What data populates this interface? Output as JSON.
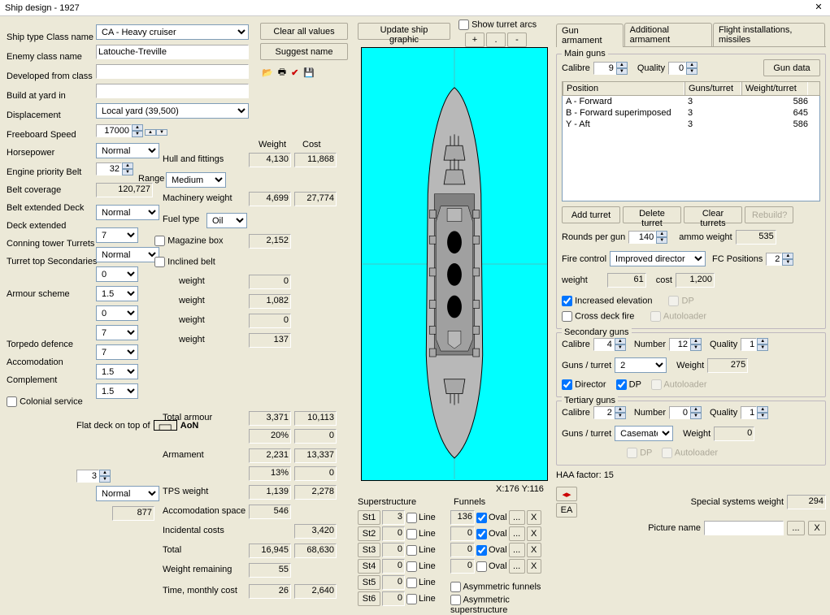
{
  "window": {
    "title": "Ship design - 1927"
  },
  "left": {
    "ship_type_label": "Ship type",
    "ship_type": "CA - Heavy cruiser",
    "class_name_label": "Class name",
    "class_name": "Latouche-Treville",
    "enemy_class_label": "Enemy class name",
    "enemy_class": "",
    "developed_label": "Developed from class",
    "developed": "",
    "build_yard_label": "Build at yard in",
    "build_yard": "Local yard (39,500)",
    "displacement_label": "Displacement",
    "displacement": "17000",
    "freeboard_label": "Freeboard",
    "freeboard": "Normal",
    "speed_label": "Speed",
    "speed": "32",
    "horsepower_label": "Horsepower",
    "horsepower": "120,727",
    "engine_priority_label": "Engine priority",
    "engine_priority": "Normal",
    "belt_label": "Belt",
    "belt": "7",
    "belt_cov_label": "Belt coverage",
    "belt_cov": "Normal",
    "belt_ext_label": "Belt extended",
    "belt_ext": "0",
    "deck_label": "Deck",
    "deck": "1.5",
    "deck_ext_label": "Deck extended",
    "deck_ext": "0",
    "conning_label": "Conning tower",
    "conning": "7",
    "turrets_label": "Turrets",
    "turrets": "7",
    "turret_top_label": "Turret top",
    "turret_top": "1.5",
    "secondaries_label": "Secondaries",
    "secondaries": "1.5",
    "armour_scheme_label": "Armour scheme",
    "armour_scheme": "Flat deck on top of",
    "aon_label": "AoN",
    "torpedo_def_label": "Torpedo defence",
    "torpedo_def": "3",
    "accom_label": "Accomodation",
    "accom": "Normal",
    "complement_label": "Complement",
    "complement": "877",
    "colonial_label": "Colonial service"
  },
  "mid": {
    "clear_btn": "Clear all values",
    "suggest_btn": "Suggest name",
    "weight_hdr": "Weight",
    "cost_hdr": "Cost",
    "hull_label": "Hull and fittings",
    "hull_weight": "4,130",
    "hull_cost": "11,868",
    "range_label": "Range",
    "range": "Medium",
    "machinery_label": "Machinery weight",
    "machinery_weight": "4,699",
    "machinery_cost": "27,774",
    "fuel_label": "Fuel type",
    "fuel": "Oil",
    "magbox_label": "Magazine box",
    "magbox_weight": "2,152",
    "inclined_label": "Inclined belt",
    "w1_label": "weight",
    "w1": "0",
    "w2_label": "weight",
    "w2": "1,082",
    "w3_label": "weight",
    "w3": "0",
    "w4_label": "weight",
    "w4": "137",
    "total_armour_label": "Total armour",
    "total_armour_w": "3,371",
    "total_armour_c": "10,113",
    "armament_label": "Armament",
    "armscheme_pct": "20%",
    "armscheme_cost": "0",
    "armament_w": "2,231",
    "armament_c": "13,337",
    "thirteen_pct": "13%",
    "thirteen_cost": "0",
    "tps_label": "TPS weight",
    "tps_w": "1,139",
    "tps_c": "2,278",
    "accspace_label": "Accomodation space",
    "accspace_w": "546",
    "incidental_label": "Incidental costs",
    "incidental_c": "3,420",
    "total_label": "Total",
    "total_w": "16,945",
    "total_c": "68,630",
    "rem_label": "Weight remaining",
    "rem_w": "55",
    "time_label": "Time, monthly cost",
    "time_w": "26",
    "time_c": "2,640"
  },
  "center": {
    "update_btn": "Update ship graphic",
    "show_turret_label": "Show turret arcs",
    "plus": "+",
    "dot": ".",
    "minus": "-",
    "coord": "X:176 Y:116",
    "super_label": "Superstructure",
    "funnels_label": "Funnels",
    "st_labels": [
      "St1",
      "St2",
      "St3",
      "St4",
      "St5",
      "St6"
    ],
    "st_vals": [
      "3",
      "0",
      "0",
      "0",
      "0",
      "0"
    ],
    "line_label": "Line",
    "fn_vals": [
      "136",
      "0",
      "0",
      "0"
    ],
    "oval_label": "Oval",
    "dots_btn": "...",
    "x_btn": "X",
    "asym_funnels": "Asymmetric funnels",
    "asym_super": "Asymmetric superstructure"
  },
  "right": {
    "tab1": "Gun armament",
    "tab2": "Additional armament",
    "tab3": "Flight installations, missiles",
    "main_guns_label": "Main guns",
    "calibre_label": "Calibre",
    "calibre": "9",
    "quality_label": "Quality",
    "quality": "0",
    "gun_data_btn": "Gun data",
    "col_pos": "Position",
    "col_gpt": "Guns/turret",
    "col_wpt": "Weight/turret",
    "rows": [
      {
        "pos": "A - Forward",
        "gpt": "3",
        "wpt": "586"
      },
      {
        "pos": "B - Forward superimposed",
        "gpt": "3",
        "wpt": "645"
      },
      {
        "pos": "Y - Aft",
        "gpt": "3",
        "wpt": "586"
      }
    ],
    "add_turret": "Add turret",
    "del_turret": "Delete turret",
    "clear_turrets": "Clear turrets",
    "rebuild": "Rebuild?",
    "rpg_label": "Rounds per gun",
    "rpg": "140",
    "ammo_label": "ammo weight",
    "ammo": "535",
    "fc_label": "Fire control",
    "fc": "Improved director",
    "fcpos_label": "FC Positions",
    "fcpos": "2",
    "fc_weight_label": "weight",
    "fc_weight": "61",
    "fc_cost_label": "cost",
    "fc_cost": "1,200",
    "inc_elev": "Increased elevation",
    "dp": "DP",
    "cross_deck": "Cross deck fire",
    "autoloader": "Autoloader",
    "secondary_label": "Secondary guns",
    "sec_calibre": "4",
    "sec_number_label": "Number",
    "sec_number": "12",
    "sec_quality": "1",
    "gpt_label": "Guns / turret",
    "sec_gpt": "2",
    "sec_weight_label": "Weight",
    "sec_weight": "275",
    "director": "Director",
    "tertiary_label": "Tertiary guns",
    "ter_calibre": "2",
    "ter_number": "0",
    "ter_quality": "1",
    "ter_gpt": "Casemate",
    "ter_weight": "0",
    "haa": "HAA factor: 15",
    "ea_btn": "EA",
    "ssw_label": "Special systems weight",
    "ssw": "294",
    "pic_label": "Picture name",
    "pic": ""
  }
}
